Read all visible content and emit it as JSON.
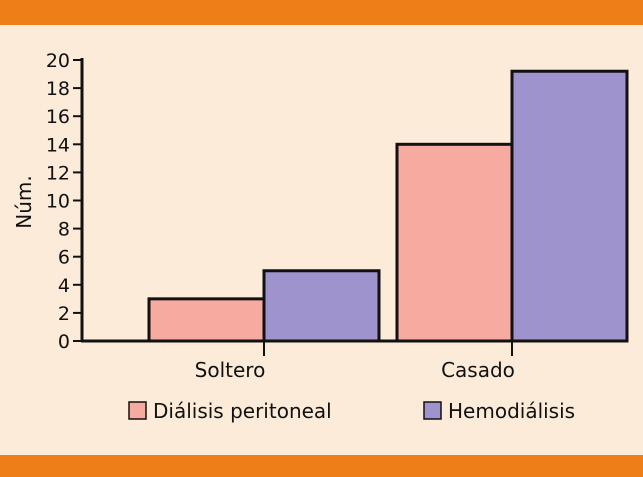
{
  "chart_data": {
    "type": "bar",
    "categories": [
      "Soltero",
      "Casado"
    ],
    "series": [
      {
        "name": "Diálisis peritoneal",
        "values": [
          3,
          14
        ],
        "color": "#f6aaa0"
      },
      {
        "name": "Hemodiálisis",
        "values": [
          5,
          19.2
        ],
        "color": "#9e93cc"
      }
    ],
    "title": "",
    "xlabel": "",
    "ylabel": "Núm.",
    "ylim": [
      0,
      20
    ],
    "yticks": [
      0,
      2,
      4,
      6,
      8,
      10,
      12,
      14,
      16,
      18,
      20
    ],
    "grid": false,
    "legend_position": "bottom",
    "band_color": "#ee7f18",
    "background_color": "#fdebd9"
  }
}
